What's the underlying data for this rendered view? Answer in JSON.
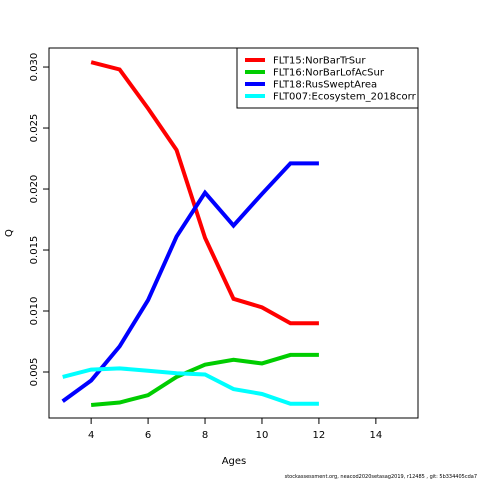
{
  "chart_data": {
    "type": "line",
    "xlabel": "Ages",
    "ylabel": "Q",
    "footer": "stockassessment.org, neacod2020setasag2019, r12485 , git: 5b334405cda7",
    "x": [
      3,
      4,
      5,
      6,
      7,
      8,
      9,
      10,
      11,
      12
    ],
    "series": [
      {
        "name": "FLT15:NorBarTrSur",
        "color": "#ff0000",
        "values": [
          null,
          0.0304,
          0.0298,
          0.0266,
          0.0232,
          0.016,
          0.011,
          0.0103,
          0.009,
          0.009
        ]
      },
      {
        "name": "FLT16:NorBarLofAcSur",
        "color": "#00cd00",
        "values": [
          null,
          0.0023,
          0.0025,
          0.0031,
          0.0046,
          0.0056,
          0.006,
          0.0057,
          0.0064,
          0.0064
        ]
      },
      {
        "name": "FLT18:RusSweptArea",
        "color": "#0000ff",
        "values": [
          0.0026,
          0.0043,
          0.0071,
          0.0109,
          0.0161,
          0.0197,
          0.017,
          0.0196,
          0.0221,
          0.0221
        ]
      },
      {
        "name": "FLT007:Ecosystem_2018corr",
        "color": "#00ffff",
        "values": [
          0.0046,
          0.0052,
          0.0053,
          0.0051,
          0.0049,
          0.0048,
          0.0036,
          0.0032,
          0.0024,
          0.0024
        ]
      }
    ],
    "xlim": [
      2.52,
      15.48
    ],
    "xticks": [
      4,
      6,
      8,
      10,
      12,
      14
    ],
    "ylim": [
      0.00123,
      0.03156
    ],
    "yticks": [
      0.005,
      {
        "value": 0.01,
        "label": "0.010"
      },
      0.015,
      {
        "value": 0.02,
        "label": "0.020"
      },
      0.025,
      {
        "value": 0.03,
        "label": "0.030"
      }
    ],
    "legend": "top-right"
  }
}
